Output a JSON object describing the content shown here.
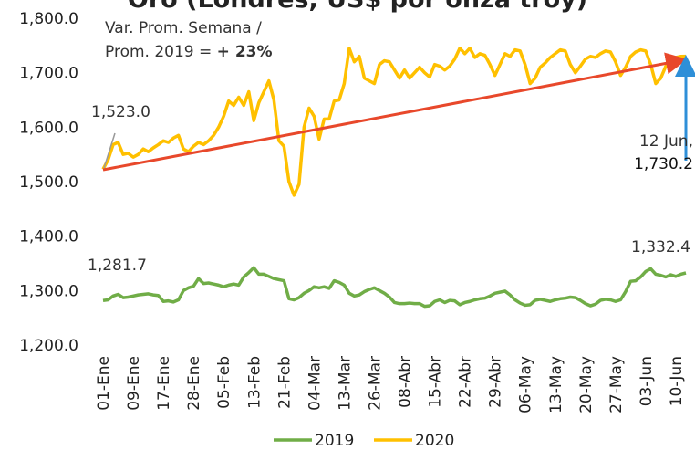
{
  "chart_data": {
    "type": "line",
    "title": "Oro (Londres, US$ por onza troy)",
    "categories": [
      "01-Ene",
      null,
      null,
      null,
      null,
      null,
      "09-Ene",
      null,
      null,
      null,
      null,
      null,
      "17-Ene",
      null,
      null,
      null,
      null,
      null,
      "28-Ene",
      null,
      null,
      null,
      null,
      null,
      "05-Feb",
      null,
      null,
      null,
      null,
      null,
      "13-Feb",
      null,
      null,
      null,
      null,
      null,
      "21-Feb",
      null,
      null,
      null,
      null,
      null,
      "04-Mar",
      null,
      null,
      null,
      null,
      null,
      "13-Mar",
      null,
      null,
      null,
      null,
      null,
      "26-Mar",
      null,
      null,
      null,
      null,
      null,
      "08-Abr",
      null,
      null,
      null,
      null,
      null,
      "15-Abr",
      null,
      null,
      null,
      null,
      null,
      "22-Abr",
      null,
      null,
      null,
      null,
      null,
      "29-Abr",
      null,
      null,
      null,
      null,
      null,
      "06-May",
      null,
      null,
      null,
      null,
      null,
      "13-May",
      null,
      null,
      null,
      null,
      null,
      "20-May",
      null,
      null,
      null,
      null,
      null,
      "27-May",
      null,
      null,
      null,
      null,
      null,
      "03-Jun",
      null,
      null,
      null,
      null,
      null,
      "10-Jun",
      null,
      null
    ],
    "series": [
      {
        "name": "2019",
        "color": "#70ad47",
        "values": [
          1281.7,
          1283,
          1290,
          1293,
          1287,
          1288,
          1290,
          1292,
          1293,
          1294,
          1292,
          1291,
          1280,
          1281,
          1279,
          1283,
          1300,
          1305,
          1308,
          1322,
          1313,
          1314,
          1312,
          1310,
          1307,
          1310,
          1312,
          1310,
          1325,
          1333,
          1342,
          1330,
          1330,
          1326,
          1322,
          1320,
          1318,
          1285,
          1283,
          1287,
          1295,
          1300,
          1307,
          1305,
          1307,
          1304,
          1318,
          1315,
          1310,
          1295,
          1290,
          1292,
          1298,
          1302,
          1305,
          1300,
          1295,
          1288,
          1278,
          1276,
          1276,
          1277,
          1276,
          1276,
          1271,
          1272,
          1280,
          1283,
          1278,
          1282,
          1281,
          1274,
          1278,
          1280,
          1283,
          1285,
          1286,
          1290,
          1295,
          1297,
          1299,
          1292,
          1283,
          1277,
          1273,
          1274,
          1282,
          1284,
          1282,
          1280,
          1283,
          1285,
          1286,
          1288,
          1287,
          1282,
          1276,
          1272,
          1275,
          1282,
          1284,
          1283,
          1280,
          1283,
          1298,
          1317,
          1318,
          1325,
          1335,
          1340,
          1330,
          1328,
          1325,
          1329,
          1326,
          1330,
          1332.4
        ]
      },
      {
        "name": "2020",
        "color": "#ffc000",
        "values": [
          1523,
          1540,
          1568,
          1572,
          1550,
          1552,
          1545,
          1550,
          1560,
          1555,
          1562,
          1568,
          1575,
          1572,
          1580,
          1585,
          1560,
          1555,
          1565,
          1572,
          1568,
          1575,
          1585,
          1600,
          1620,
          1648,
          1640,
          1655,
          1640,
          1665,
          1612,
          1645,
          1665,
          1685,
          1650,
          1575,
          1565,
          1500,
          1475,
          1495,
          1600,
          1635,
          1620,
          1578,
          1615,
          1615,
          1648,
          1650,
          1680,
          1745,
          1720,
          1730,
          1690,
          1685,
          1680,
          1715,
          1722,
          1720,
          1705,
          1690,
          1705,
          1690,
          1700,
          1710,
          1700,
          1692,
          1715,
          1712,
          1705,
          1712,
          1725,
          1745,
          1735,
          1745,
          1728,
          1735,
          1732,
          1715,
          1695,
          1715,
          1735,
          1730,
          1742,
          1740,
          1715,
          1680,
          1690,
          1710,
          1718,
          1728,
          1735,
          1742,
          1740,
          1715,
          1700,
          1712,
          1725,
          1730,
          1728,
          1735,
          1740,
          1738,
          1720,
          1695,
          1710,
          1730,
          1738,
          1742,
          1740,
          1715,
          1680,
          1690,
          1712,
          1720,
          1728,
          1730,
          1730.2
        ]
      }
    ],
    "ylim": [
      1200,
      1800
    ],
    "yticks": [
      {
        "value": 1200,
        "label": "1,200.0"
      },
      {
        "value": 1300,
        "label": "1,300.0"
      },
      {
        "value": 1400,
        "label": "1,400.0"
      },
      {
        "value": 1500,
        "label": "1,500.0"
      },
      {
        "value": 1600,
        "label": "1,600.0"
      },
      {
        "value": 1700,
        "label": "1,700.0"
      },
      {
        "value": 1800,
        "label": "1,800.0"
      }
    ],
    "grid": false,
    "legend": "bottom",
    "annotations": {
      "note_line1": "Var. Prom. Semana /",
      "note_line2": "Prom. 2019 = ",
      "note_bold": "+ 23%",
      "first_2020": "1,523.0",
      "first_2019": "1,281.7",
      "last_2019": "1,332.4",
      "last_date": "12 Jun,",
      "last_2020": "1,730.2"
    }
  }
}
